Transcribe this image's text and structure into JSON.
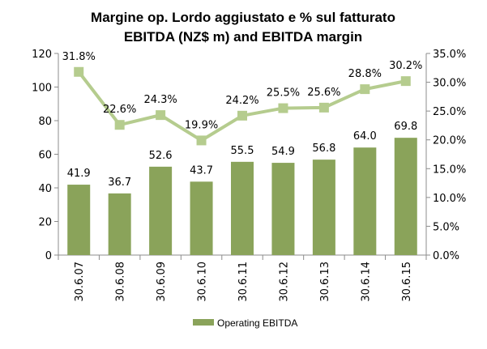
{
  "chart_data": {
    "type": "bar",
    "title": "Margine op. Lordo aggiustato e % sul fatturato",
    "subtitle": "EBITDA (NZ$ m) and EBITDA margin",
    "categories": [
      "30.6.07",
      "30.6.08",
      "30.6.09",
      "30.6.10",
      "30.6.11",
      "30.6.12",
      "30.6.13",
      "30.6.14",
      "30.6.15"
    ],
    "series": [
      {
        "name": "Operating EBITDA",
        "type": "bar",
        "axis": "left",
        "values": [
          41.9,
          36.7,
          52.6,
          43.7,
          55.5,
          54.9,
          56.8,
          64.0,
          69.8
        ],
        "labels": [
          "41.9",
          "36.7",
          "52.6",
          "43.7",
          "55.5",
          "54.9",
          "56.8",
          "64.0",
          "69.8"
        ]
      },
      {
        "name": "EBITDA margin",
        "type": "line",
        "axis": "right",
        "values": [
          31.8,
          22.6,
          24.3,
          19.9,
          24.2,
          25.5,
          25.6,
          28.8,
          30.2
        ],
        "labels": [
          "31.8%",
          "22.6%",
          "24.3%",
          "19.9%",
          "24.2%",
          "25.5%",
          "25.6%",
          "28.8%",
          "30.2%"
        ]
      }
    ],
    "y_left": {
      "min": 0,
      "max": 120,
      "ticks": [
        "0",
        "20",
        "40",
        "60",
        "80",
        "100",
        "120"
      ]
    },
    "y_right": {
      "min": 0,
      "max": 35,
      "ticks": [
        "0.0%",
        "5.0%",
        "10.0%",
        "15.0%",
        "20.0%",
        "25.0%",
        "30.0%",
        "35.0%"
      ]
    },
    "legend": {
      "position": "bottom",
      "entries": [
        "Operating EBITDA"
      ]
    },
    "grid": false
  },
  "colors": {
    "bar": "#8aa35a",
    "line": "#b5cc8e",
    "axis": "#8c8c8c"
  }
}
